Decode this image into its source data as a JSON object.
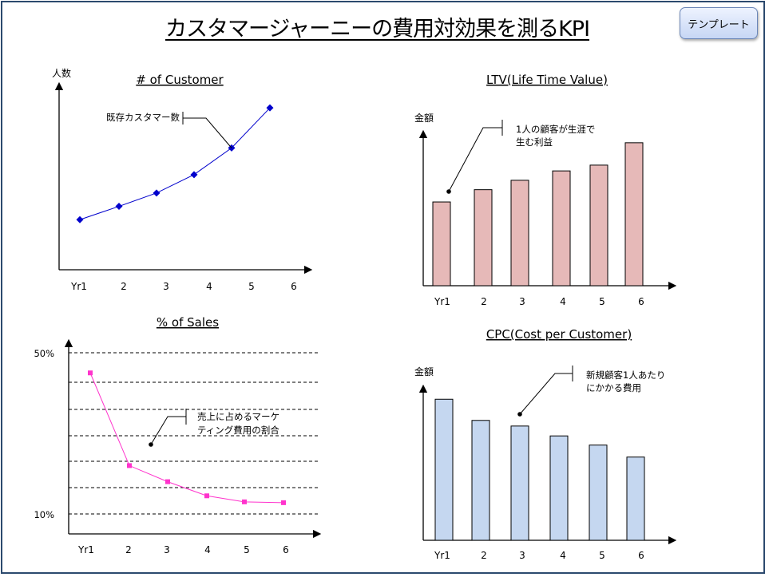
{
  "header": {
    "title": "カスタマージャーニーの費用対効果を測るKPI",
    "template_button": "テンプレート"
  },
  "colors": {
    "frame": "#2c4a6e",
    "customer_line": "#0000cc",
    "ltv_bar": "#e6b9b8",
    "sales_line": "#ff33cc",
    "cpc_bar": "#c5d7f0"
  },
  "chart_data": [
    {
      "id": "customer",
      "type": "line",
      "title": "# of Customer",
      "ylabel": "人数",
      "categories": [
        "Yr1",
        "2",
        "3",
        "4",
        "5",
        "6"
      ],
      "values": [
        30,
        38,
        46,
        57,
        73,
        97
      ],
      "ylim": [
        0,
        110
      ],
      "annotation": "既存カスタマー数"
    },
    {
      "id": "ltv",
      "type": "bar",
      "title": "LTV(Life Time Value)",
      "ylabel": "金額",
      "categories": [
        "Yr1",
        "2",
        "3",
        "4",
        "5",
        "6"
      ],
      "values": [
        116,
        133,
        146,
        159,
        167,
        198
      ],
      "ylim": [
        0,
        210
      ],
      "annotation": [
        "1人の顧客が生涯で",
        "生む利益"
      ]
    },
    {
      "id": "sales",
      "type": "line",
      "title": "% of Sales",
      "yticks": [
        "50%",
        "10%"
      ],
      "categories": [
        "Yr1",
        "2",
        "3",
        "4",
        "5",
        "6"
      ],
      "values": [
        45,
        22,
        18,
        14.5,
        13,
        12.8
      ],
      "ylim": [
        10,
        50
      ],
      "annotation": [
        "売上に占めるマーケ",
        "ティング費用の割合"
      ]
    },
    {
      "id": "cpc",
      "type": "bar",
      "title": "CPC(Cost per Customer)",
      "ylabel": "金額",
      "categories": [
        "Yr1",
        "2",
        "3",
        "4",
        "5",
        "6"
      ],
      "values": [
        200,
        170,
        162,
        148,
        135,
        118
      ],
      "ylim": [
        0,
        215
      ],
      "annotation": [
        "新規顧客1人あたり",
        "にかかる費用"
      ]
    }
  ]
}
